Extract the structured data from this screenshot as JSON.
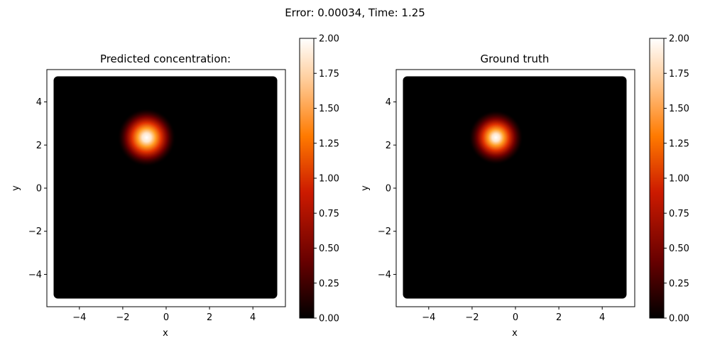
{
  "figure": {
    "suptitle": "Error: 0.00034, Time: 1.25"
  },
  "colors": {
    "background": "#000000",
    "colormap": "gist_heat",
    "colormap_stops": [
      "#000000",
      "#660000",
      "#cc1a00",
      "#ff7a00",
      "#ffcc99",
      "#ffffff"
    ]
  },
  "chart_data": [
    {
      "type": "heatmap",
      "title": "Predicted concentration:",
      "xlabel": "x",
      "ylabel": "y",
      "xlim": [
        -5.5,
        5.5
      ],
      "ylim": [
        -5.5,
        5.5
      ],
      "domain": [
        -5,
        5
      ],
      "xticks": [
        -4,
        -2,
        0,
        2,
        4
      ],
      "yticks": [
        -4,
        -2,
        0,
        2,
        4
      ],
      "grid": false,
      "peak": {
        "x": -0.9,
        "y": 2.35,
        "value": 2.0,
        "sigma": 0.45
      },
      "colorbar": {
        "min": 0.0,
        "max": 2.0,
        "ticks": [
          "0.00",
          "0.25",
          "0.50",
          "0.75",
          "1.00",
          "1.25",
          "1.50",
          "1.75",
          "2.00"
        ]
      }
    },
    {
      "type": "heatmap",
      "title": "Ground truth",
      "xlabel": "x",
      "ylabel": "y",
      "xlim": [
        -5.5,
        5.5
      ],
      "ylim": [
        -5.5,
        5.5
      ],
      "domain": [
        -5,
        5
      ],
      "xticks": [
        -4,
        -2,
        0,
        2,
        4
      ],
      "yticks": [
        -4,
        -2,
        0,
        2,
        4
      ],
      "grid": false,
      "peak": {
        "x": -0.9,
        "y": 2.35,
        "value": 2.0,
        "sigma": 0.42
      },
      "colorbar": {
        "min": 0.0,
        "max": 2.0,
        "ticks": [
          "0.00",
          "0.25",
          "0.50",
          "0.75",
          "1.00",
          "1.25",
          "1.50",
          "1.75",
          "2.00"
        ]
      }
    }
  ]
}
